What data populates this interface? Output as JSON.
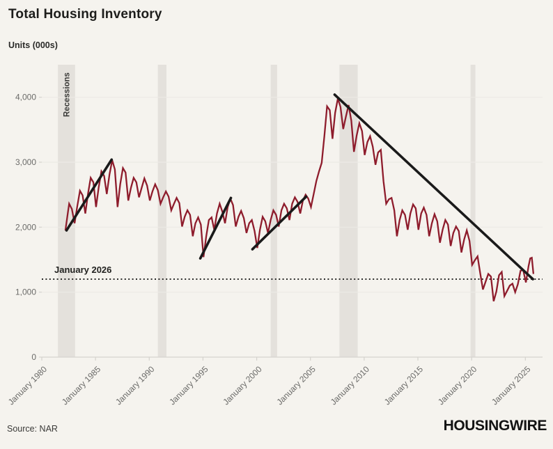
{
  "header": {
    "title": "Total Housing Inventory"
  },
  "axis_note": {
    "units": "Units (000s)"
  },
  "footer": {
    "source": "Source: NAR",
    "brand": "HOUSINGWIRE"
  },
  "colors": {
    "background": "#f5f3ee",
    "line": "#8e1c2c",
    "trend": "#1a1a1a",
    "recession_band": "#e4e1dc",
    "gridline": "#eceae5",
    "axis_line": "#d5d3ce",
    "tick_text": "#6b6b69",
    "annotation_text": "#222220"
  },
  "chart_data": {
    "type": "line",
    "title": "Total Housing Inventory",
    "xlabel": "",
    "ylabel": "Units (000s)",
    "x_domain": [
      1980,
      2026.6
    ],
    "ylim": [
      0,
      4500
    ],
    "grid": "horizontal",
    "legend_position": "none",
    "x_ticks": [
      {
        "year": 1980,
        "label": "January 1980"
      },
      {
        "year": 1985,
        "label": "January 1985"
      },
      {
        "year": 1990,
        "label": "January 1990"
      },
      {
        "year": 1995,
        "label": "January 1995"
      },
      {
        "year": 2000,
        "label": "January 2000"
      },
      {
        "year": 2005,
        "label": "January 2005"
      },
      {
        "year": 2010,
        "label": "January 2010"
      },
      {
        "year": 2015,
        "label": "January 2015"
      },
      {
        "year": 2020,
        "label": "January 2020"
      },
      {
        "year": 2025,
        "label": "January 2025"
      }
    ],
    "y_ticks": [
      {
        "value": 0,
        "label": "0"
      },
      {
        "value": 1000,
        "label": "1,000"
      },
      {
        "value": 2000,
        "label": "2,000"
      },
      {
        "value": 3000,
        "label": "3,000"
      },
      {
        "value": 4000,
        "label": "4,000"
      }
    ],
    "recessions": {
      "label": "Recessions",
      "bands": [
        [
          1981.5,
          1983.1
        ],
        [
          1990.8,
          1991.6
        ],
        [
          2001.3,
          2001.9
        ],
        [
          2007.7,
          2009.4
        ],
        [
          2019.9,
          2020.35
        ]
      ]
    },
    "dotted_line": {
      "label": "January 2026",
      "value": 1200
    },
    "trend_lines": [
      {
        "name": "early-80s-uptrend",
        "points": [
          [
            1982.3,
            1950
          ],
          [
            1986.5,
            3040
          ]
        ]
      },
      {
        "name": "mid-90s-uptrend",
        "points": [
          [
            1994.75,
            1520
          ],
          [
            1997.6,
            2450
          ]
        ]
      },
      {
        "name": "early-00s-uptrend",
        "points": [
          [
            1999.6,
            1660
          ],
          [
            2004.6,
            2470
          ]
        ]
      },
      {
        "name": "post-07-downtrend",
        "points": [
          [
            2007.25,
            4040
          ],
          [
            2025.7,
            1200
          ]
        ]
      }
    ],
    "series": [
      {
        "name": "Total housing inventory (000s)",
        "color": "#8e1c2c",
        "points": [
          [
            1982.2,
            1950
          ],
          [
            1982.45,
            2250
          ],
          [
            1982.55,
            2360
          ],
          [
            1982.8,
            2280
          ],
          [
            1983.05,
            2060
          ],
          [
            1983.3,
            2320
          ],
          [
            1983.55,
            2560
          ],
          [
            1983.8,
            2490
          ],
          [
            1984.05,
            2210
          ],
          [
            1984.3,
            2510
          ],
          [
            1984.55,
            2760
          ],
          [
            1984.8,
            2690
          ],
          [
            1985.05,
            2310
          ],
          [
            1985.3,
            2620
          ],
          [
            1985.55,
            2860
          ],
          [
            1985.8,
            2790
          ],
          [
            1986.05,
            2510
          ],
          [
            1986.3,
            2810
          ],
          [
            1986.55,
            3030
          ],
          [
            1986.8,
            2890
          ],
          [
            1987.05,
            2310
          ],
          [
            1987.3,
            2660
          ],
          [
            1987.55,
            2910
          ],
          [
            1987.8,
            2840
          ],
          [
            1988.05,
            2410
          ],
          [
            1988.3,
            2610
          ],
          [
            1988.55,
            2760
          ],
          [
            1988.8,
            2690
          ],
          [
            1989.05,
            2460
          ],
          [
            1989.3,
            2610
          ],
          [
            1989.55,
            2750
          ],
          [
            1989.8,
            2640
          ],
          [
            1990.05,
            2410
          ],
          [
            1990.3,
            2550
          ],
          [
            1990.55,
            2660
          ],
          [
            1990.8,
            2570
          ],
          [
            1991.05,
            2360
          ],
          [
            1991.3,
            2460
          ],
          [
            1991.55,
            2550
          ],
          [
            1991.8,
            2470
          ],
          [
            1992.05,
            2260
          ],
          [
            1992.3,
            2360
          ],
          [
            1992.55,
            2450
          ],
          [
            1992.8,
            2370
          ],
          [
            1993.05,
            2010
          ],
          [
            1993.3,
            2160
          ],
          [
            1993.55,
            2260
          ],
          [
            1993.8,
            2190
          ],
          [
            1994.05,
            1860
          ],
          [
            1994.3,
            2060
          ],
          [
            1994.55,
            2150
          ],
          [
            1994.8,
            2040
          ],
          [
            1995.05,
            1540
          ],
          [
            1995.3,
            1860
          ],
          [
            1995.55,
            2110
          ],
          [
            1995.8,
            2150
          ],
          [
            1996.05,
            1960
          ],
          [
            1996.3,
            2210
          ],
          [
            1996.55,
            2360
          ],
          [
            1996.8,
            2240
          ],
          [
            1997.05,
            2060
          ],
          [
            1997.3,
            2310
          ],
          [
            1997.55,
            2440
          ],
          [
            1997.8,
            2340
          ],
          [
            1998.05,
            2010
          ],
          [
            1998.3,
            2160
          ],
          [
            1998.55,
            2250
          ],
          [
            1998.8,
            2140
          ],
          [
            1999.05,
            1910
          ],
          [
            1999.3,
            2060
          ],
          [
            1999.55,
            2110
          ],
          [
            1999.8,
            1940
          ],
          [
            2000.05,
            1680
          ],
          [
            2000.3,
            1960
          ],
          [
            2000.55,
            2160
          ],
          [
            2000.8,
            2090
          ],
          [
            2001.05,
            1910
          ],
          [
            2001.3,
            2110
          ],
          [
            2001.55,
            2260
          ],
          [
            2001.8,
            2190
          ],
          [
            2002.05,
            2010
          ],
          [
            2002.3,
            2260
          ],
          [
            2002.55,
            2360
          ],
          [
            2002.8,
            2290
          ],
          [
            2003.05,
            2110
          ],
          [
            2003.3,
            2360
          ],
          [
            2003.55,
            2460
          ],
          [
            2003.8,
            2390
          ],
          [
            2004.05,
            2210
          ],
          [
            2004.3,
            2410
          ],
          [
            2004.55,
            2500
          ],
          [
            2004.8,
            2440
          ],
          [
            2005.05,
            2310
          ],
          [
            2005.3,
            2510
          ],
          [
            2005.55,
            2710
          ],
          [
            2005.8,
            2860
          ],
          [
            2006.05,
            2990
          ],
          [
            2006.3,
            3410
          ],
          [
            2006.55,
            3860
          ],
          [
            2006.8,
            3800
          ],
          [
            2007.05,
            3360
          ],
          [
            2007.3,
            3760
          ],
          [
            2007.55,
            3980
          ],
          [
            2007.8,
            3850
          ],
          [
            2008.05,
            3510
          ],
          [
            2008.3,
            3700
          ],
          [
            2008.55,
            3880
          ],
          [
            2008.8,
            3640
          ],
          [
            2009.05,
            3160
          ],
          [
            2009.3,
            3410
          ],
          [
            2009.55,
            3600
          ],
          [
            2009.8,
            3480
          ],
          [
            2010.05,
            3110
          ],
          [
            2010.3,
            3310
          ],
          [
            2010.55,
            3400
          ],
          [
            2010.8,
            3240
          ],
          [
            2011.05,
            2960
          ],
          [
            2011.3,
            3150
          ],
          [
            2011.55,
            3190
          ],
          [
            2011.8,
            2710
          ],
          [
            2012.05,
            2360
          ],
          [
            2012.3,
            2430
          ],
          [
            2012.55,
            2450
          ],
          [
            2012.8,
            2260
          ],
          [
            2013.05,
            1860
          ],
          [
            2013.3,
            2110
          ],
          [
            2013.55,
            2260
          ],
          [
            2013.8,
            2190
          ],
          [
            2014.05,
            1960
          ],
          [
            2014.3,
            2210
          ],
          [
            2014.55,
            2350
          ],
          [
            2014.8,
            2290
          ],
          [
            2015.05,
            1960
          ],
          [
            2015.3,
            2210
          ],
          [
            2015.55,
            2300
          ],
          [
            2015.8,
            2190
          ],
          [
            2016.05,
            1860
          ],
          [
            2016.3,
            2060
          ],
          [
            2016.55,
            2200
          ],
          [
            2016.8,
            2090
          ],
          [
            2017.05,
            1760
          ],
          [
            2017.3,
            1960
          ],
          [
            2017.55,
            2110
          ],
          [
            2017.8,
            2040
          ],
          [
            2018.05,
            1710
          ],
          [
            2018.3,
            1910
          ],
          [
            2018.55,
            2010
          ],
          [
            2018.8,
            1940
          ],
          [
            2019.05,
            1610
          ],
          [
            2019.3,
            1810
          ],
          [
            2019.55,
            1950
          ],
          [
            2019.8,
            1790
          ],
          [
            2020.05,
            1420
          ],
          [
            2020.3,
            1490
          ],
          [
            2020.55,
            1550
          ],
          [
            2020.8,
            1290
          ],
          [
            2021.05,
            1040
          ],
          [
            2021.3,
            1160
          ],
          [
            2021.55,
            1280
          ],
          [
            2021.8,
            1240
          ],
          [
            2022.05,
            860
          ],
          [
            2022.3,
            1010
          ],
          [
            2022.55,
            1260
          ],
          [
            2022.8,
            1310
          ],
          [
            2023.05,
            940
          ],
          [
            2023.3,
            1020
          ],
          [
            2023.55,
            1100
          ],
          [
            2023.8,
            1130
          ],
          [
            2024.05,
            1000
          ],
          [
            2024.3,
            1120
          ],
          [
            2024.55,
            1330
          ],
          [
            2024.8,
            1340
          ],
          [
            2025.05,
            1150
          ],
          [
            2025.3,
            1400
          ],
          [
            2025.45,
            1520
          ],
          [
            2025.6,
            1530
          ],
          [
            2025.75,
            1280
          ]
        ]
      }
    ]
  }
}
